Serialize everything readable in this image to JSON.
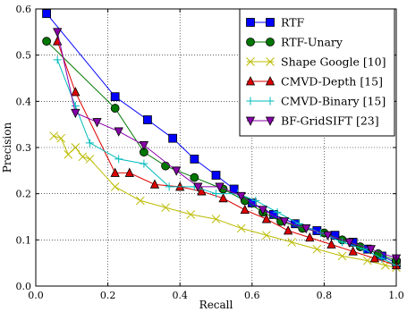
{
  "chart_data": {
    "type": "line",
    "xlabel": "Recall",
    "ylabel": "Precision",
    "xlim": [
      0,
      1
    ],
    "ylim": [
      0,
      0.6
    ],
    "xticks": [
      "0.0",
      "0.2",
      "0.4",
      "0.6",
      "0.8",
      "1.0"
    ],
    "yticks": [
      "0.0",
      "0.1",
      "0.2",
      "0.3",
      "0.4",
      "0.5",
      "0.6"
    ],
    "grid": "dotted",
    "legend_position": "top-right",
    "series": [
      {
        "name": "RTF",
        "color": "#0000ff",
        "marker": "square",
        "x": [
          0.03,
          0.22,
          0.31,
          0.38,
          0.44,
          0.5,
          0.55,
          0.6,
          0.66,
          0.72,
          0.78,
          0.83,
          0.88,
          0.92,
          0.96,
          1.0
        ],
        "y": [
          0.59,
          0.41,
          0.36,
          0.32,
          0.275,
          0.24,
          0.21,
          0.18,
          0.155,
          0.135,
          0.12,
          0.11,
          0.095,
          0.08,
          0.065,
          0.05
        ]
      },
      {
        "name": "RTF-Unary",
        "color": "#007700",
        "marker": "circle",
        "x": [
          0.03,
          0.22,
          0.3,
          0.36,
          0.44,
          0.52,
          0.58,
          0.63,
          0.68,
          0.74,
          0.8,
          0.85,
          0.9,
          0.95,
          1.0
        ],
        "y": [
          0.53,
          0.385,
          0.29,
          0.26,
          0.235,
          0.21,
          0.185,
          0.16,
          0.14,
          0.125,
          0.115,
          0.1,
          0.085,
          0.07,
          0.055
        ]
      },
      {
        "name": "Shape Google [10]",
        "color": "#bbbb00",
        "marker": "x",
        "x": [
          0.05,
          0.07,
          0.09,
          0.11,
          0.13,
          0.15,
          0.22,
          0.29,
          0.36,
          0.43,
          0.5,
          0.57,
          0.64,
          0.71,
          0.78,
          0.85,
          0.92,
          0.97,
          1.0
        ],
        "y": [
          0.325,
          0.32,
          0.285,
          0.3,
          0.28,
          0.275,
          0.215,
          0.185,
          0.17,
          0.155,
          0.145,
          0.125,
          0.11,
          0.095,
          0.08,
          0.065,
          0.055,
          0.045,
          0.04
        ]
      },
      {
        "name": "CMVD-Depth [15]",
        "color": "#dd0000",
        "marker": "triangle-up",
        "x": [
          0.06,
          0.11,
          0.22,
          0.26,
          0.33,
          0.4,
          0.46,
          0.52,
          0.58,
          0.64,
          0.7,
          0.76,
          0.82,
          0.88,
          0.94,
          1.0
        ],
        "y": [
          0.53,
          0.42,
          0.245,
          0.245,
          0.22,
          0.215,
          0.205,
          0.19,
          0.165,
          0.145,
          0.12,
          0.105,
          0.09,
          0.075,
          0.06,
          0.045
        ]
      },
      {
        "name": "CMVD-Binary [15]",
        "color": "#00bbbb",
        "marker": "plus",
        "x": [
          0.06,
          0.11,
          0.15,
          0.23,
          0.3,
          0.37,
          0.44,
          0.5,
          0.56,
          0.61,
          0.67,
          0.73,
          0.79,
          0.85,
          0.91,
          0.96,
          1.0
        ],
        "y": [
          0.49,
          0.39,
          0.31,
          0.275,
          0.265,
          0.215,
          0.215,
          0.2,
          0.2,
          0.185,
          0.16,
          0.135,
          0.115,
          0.095,
          0.08,
          0.06,
          0.045
        ]
      },
      {
        "name": "BF-GridSIFT [23]",
        "color": "#8800aa",
        "marker": "triangle-down",
        "x": [
          0.06,
          0.11,
          0.17,
          0.23,
          0.3,
          0.39,
          0.45,
          0.51,
          0.57,
          0.63,
          0.69,
          0.75,
          0.81,
          0.87,
          0.93,
          1.0
        ],
        "y": [
          0.55,
          0.375,
          0.355,
          0.335,
          0.305,
          0.25,
          0.215,
          0.215,
          0.195,
          0.165,
          0.14,
          0.125,
          0.11,
          0.095,
          0.08,
          0.06
        ]
      }
    ]
  }
}
